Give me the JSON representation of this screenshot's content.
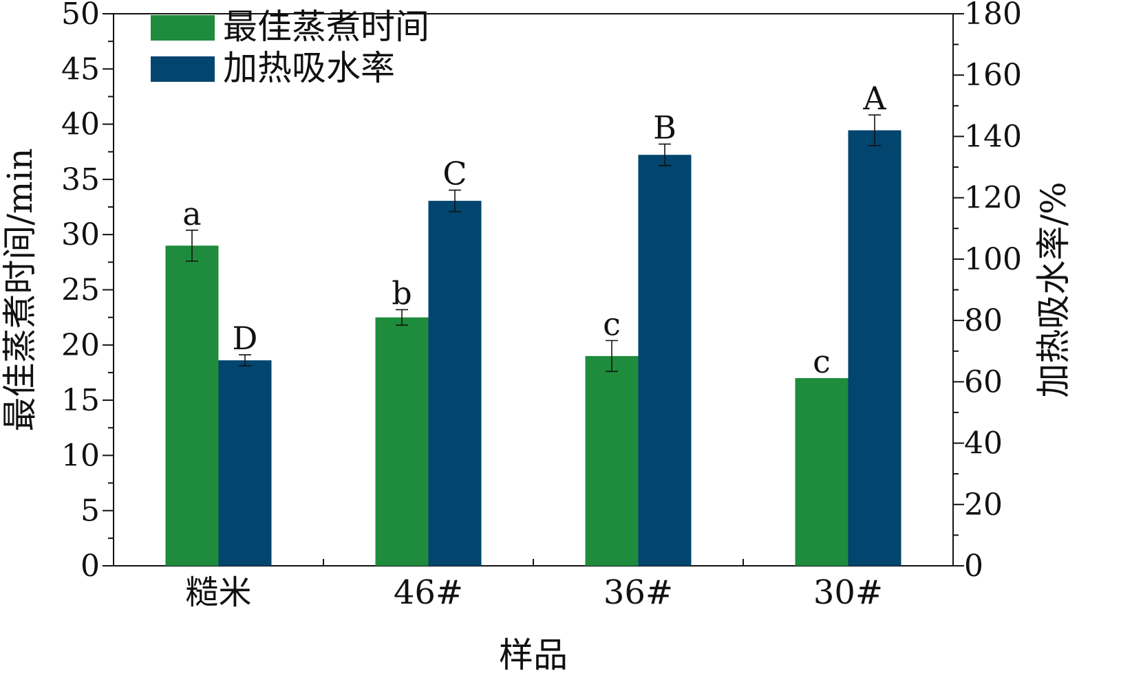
{
  "chart_data": {
    "type": "bar",
    "title": "",
    "categories": [
      "糙米",
      "46#",
      "36#",
      "30#"
    ],
    "xlabel": "样品",
    "ylabel": "最佳蒸煮时间/min",
    "y2label": "加热吸水率/%",
    "ylim": [
      0,
      50
    ],
    "y2lim": [
      0,
      180
    ],
    "yticks": [
      "0",
      "5",
      "10",
      "15",
      "20",
      "25",
      "30",
      "35",
      "40",
      "45",
      "50"
    ],
    "y2ticks": [
      "0",
      "20",
      "40",
      "60",
      "80",
      "100",
      "120",
      "140",
      "160",
      "180"
    ],
    "legend_position": "top-left",
    "grid": false,
    "series": [
      {
        "name": "最佳蒸煮时间",
        "axis": "left",
        "color": "#1e8c3c",
        "values": [
          29.0,
          22.5,
          19.0,
          17.0
        ],
        "errors": [
          1.4,
          0.7,
          1.4,
          0.0
        ],
        "significance": [
          "a",
          "b",
          "c",
          "c"
        ]
      },
      {
        "name": "加热吸水率",
        "axis": "right",
        "color": "#02456e",
        "values": [
          67.0,
          119.0,
          134.0,
          142.0
        ],
        "errors": [
          1.8,
          3.5,
          3.5,
          5.0
        ],
        "significance": [
          "D",
          "C",
          "B",
          "A"
        ]
      }
    ]
  }
}
